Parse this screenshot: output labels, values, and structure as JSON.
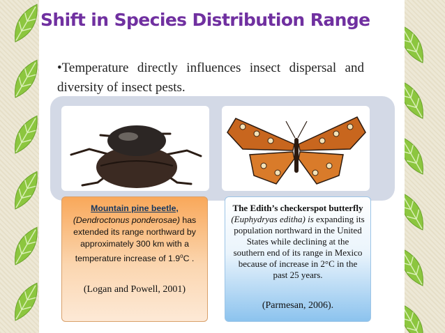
{
  "title": "Shift in Species Distribution Range",
  "bullet": "•Temperature directly influences insect dispersal and diversity of insect pests.",
  "left_box": {
    "name": "Mountain pine beetle,",
    "latin": "(Dendroctonus ponderosae)",
    "text": "has extended its range northward by approximately 300 km with a temperature increase of 1.9",
    "superscript": "o",
    "unit": "C .",
    "citation": "(Logan and Powell, 2001)"
  },
  "right_box": {
    "name": "The Edith’s checkerspot butterfly",
    "latin": "(Euphydryas editha)",
    "verb": "is",
    "text": "expanding its population northward in the United States while declining at the southern end of its range in Mexico because of increase in 2°C in the past 25 years.",
    "citation": "(Parmesan, 2006)."
  }
}
